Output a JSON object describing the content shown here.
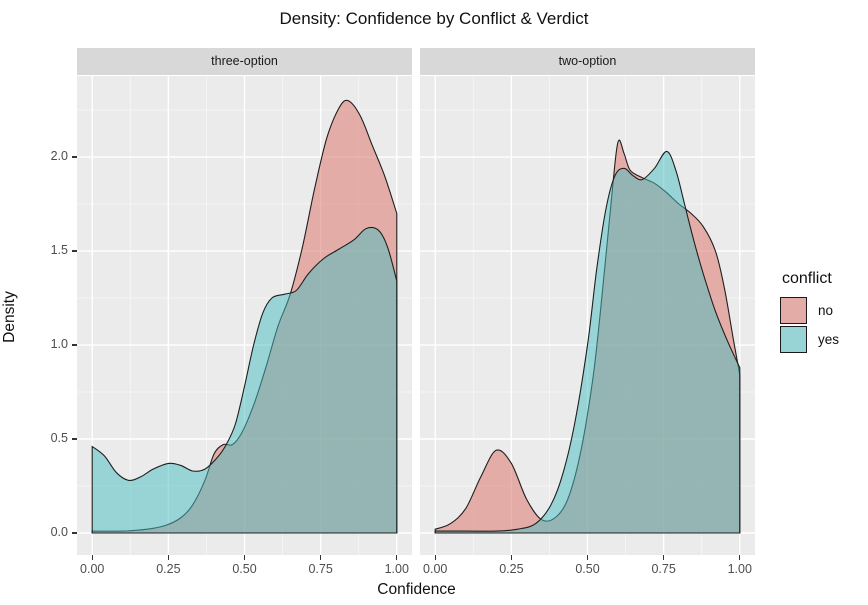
{
  "title": "Density: Confidence by Conflict & Verdict",
  "axes": {
    "x_label": "Confidence",
    "y_label": "Density"
  },
  "legend": {
    "title": "conflict",
    "items": [
      {
        "label": "no"
      },
      {
        "label": "yes"
      }
    ]
  },
  "colors": {
    "fill": {
      "no": "rgba(221,120,110,0.55)",
      "yes": "rgba(70,190,192,0.50)"
    },
    "outline": "#1f1f1f",
    "panel_bg": "#ebebeb",
    "strip_bg": "#d8d8d8",
    "grid_major": "#ffffff",
    "grid_minor": "rgba(255,255,255,0.6)",
    "axis_text": "#4d4d4d",
    "tick_mark": "#333333",
    "legend_key_bg": "#ebebeb"
  },
  "chart_data": {
    "type": "area",
    "subtype": "overlaid kernel density, faceted",
    "title": "Density: Confidence by Conflict & Verdict",
    "xlabel": "Confidence",
    "ylabel": "Density",
    "legend_title": "conflict",
    "legend_position": "right",
    "grid": true,
    "x_tick_values": [
      0,
      0.25,
      0.5,
      0.75,
      1.0
    ],
    "x_tick_labels": [
      "0.00",
      "0.25",
      "0.50",
      "0.75",
      "1.00"
    ],
    "y_tick_values": [
      0,
      0.5,
      1.0,
      1.5,
      2.0
    ],
    "y_tick_labels": [
      "0.0",
      "0.5",
      "1.0",
      "1.5",
      "2.0"
    ],
    "x_minor_ticks": [
      0.125,
      0.375,
      0.625,
      0.875
    ],
    "y_minor_ticks": [
      0.25,
      0.75,
      1.25,
      1.75,
      2.25
    ],
    "xlim": [
      -0.05,
      1.05
    ],
    "ylim": [
      -0.117,
      2.431
    ],
    "facets": [
      {
        "label": "three-option",
        "series": [
          {
            "name": "no",
            "points": [
              [
                0.0,
                0.01
              ],
              [
                0.1,
                0.01
              ],
              [
                0.18,
                0.02
              ],
              [
                0.24,
                0.04
              ],
              [
                0.29,
                0.08
              ],
              [
                0.33,
                0.15
              ],
              [
                0.37,
                0.28
              ],
              [
                0.4,
                0.42
              ],
              [
                0.43,
                0.47
              ],
              [
                0.46,
                0.47
              ],
              [
                0.49,
                0.53
              ],
              [
                0.53,
                0.68
              ],
              [
                0.57,
                0.88
              ],
              [
                0.61,
                1.1
              ],
              [
                0.65,
                1.27
              ],
              [
                0.69,
                1.52
              ],
              [
                0.73,
                1.83
              ],
              [
                0.77,
                2.1
              ],
              [
                0.81,
                2.26
              ],
              [
                0.84,
                2.3
              ],
              [
                0.88,
                2.22
              ],
              [
                0.92,
                2.06
              ],
              [
                0.96,
                1.9
              ],
              [
                1.0,
                1.7
              ]
            ]
          },
          {
            "name": "yes",
            "points": [
              [
                0.0,
                0.46
              ],
              [
                0.04,
                0.41
              ],
              [
                0.08,
                0.32
              ],
              [
                0.12,
                0.28
              ],
              [
                0.16,
                0.3
              ],
              [
                0.2,
                0.34
              ],
              [
                0.25,
                0.37
              ],
              [
                0.29,
                0.36
              ],
              [
                0.33,
                0.33
              ],
              [
                0.37,
                0.34
              ],
              [
                0.41,
                0.4
              ],
              [
                0.44,
                0.47
              ],
              [
                0.47,
                0.58
              ],
              [
                0.5,
                0.78
              ],
              [
                0.53,
                1.0
              ],
              [
                0.56,
                1.17
              ],
              [
                0.59,
                1.25
              ],
              [
                0.63,
                1.27
              ],
              [
                0.67,
                1.29
              ],
              [
                0.71,
                1.38
              ],
              [
                0.76,
                1.46
              ],
              [
                0.81,
                1.51
              ],
              [
                0.86,
                1.56
              ],
              [
                0.9,
                1.62
              ],
              [
                0.94,
                1.61
              ],
              [
                0.97,
                1.52
              ],
              [
                1.0,
                1.34
              ]
            ]
          }
        ]
      },
      {
        "label": "two-option",
        "series": [
          {
            "name": "no",
            "points": [
              [
                0.0,
                0.02
              ],
              [
                0.05,
                0.05
              ],
              [
                0.1,
                0.13
              ],
              [
                0.15,
                0.3
              ],
              [
                0.2,
                0.44
              ],
              [
                0.25,
                0.37
              ],
              [
                0.3,
                0.18
              ],
              [
                0.35,
                0.07
              ],
              [
                0.4,
                0.09
              ],
              [
                0.44,
                0.2
              ],
              [
                0.48,
                0.45
              ],
              [
                0.52,
                0.85
              ],
              [
                0.55,
                1.3
              ],
              [
                0.58,
                1.8
              ],
              [
                0.6,
                2.08
              ],
              [
                0.62,
                2.02
              ],
              [
                0.64,
                1.93
              ],
              [
                0.68,
                1.89
              ],
              [
                0.72,
                1.86
              ],
              [
                0.76,
                1.81
              ],
              [
                0.8,
                1.75
              ],
              [
                0.84,
                1.7
              ],
              [
                0.88,
                1.63
              ],
              [
                0.92,
                1.5
              ],
              [
                0.95,
                1.3
              ],
              [
                0.98,
                1.02
              ],
              [
                1.0,
                0.84
              ]
            ]
          },
          {
            "name": "yes",
            "points": [
              [
                0.0,
                0.01
              ],
              [
                0.1,
                0.01
              ],
              [
                0.2,
                0.01
              ],
              [
                0.27,
                0.02
              ],
              [
                0.33,
                0.05
              ],
              [
                0.38,
                0.15
              ],
              [
                0.42,
                0.32
              ],
              [
                0.46,
                0.6
              ],
              [
                0.5,
                1.0
              ],
              [
                0.53,
                1.4
              ],
              [
                0.56,
                1.72
              ],
              [
                0.59,
                1.9
              ],
              [
                0.62,
                1.94
              ],
              [
                0.65,
                1.9
              ],
              [
                0.68,
                1.88
              ],
              [
                0.72,
                1.94
              ],
              [
                0.76,
                2.03
              ],
              [
                0.79,
                1.93
              ],
              [
                0.82,
                1.74
              ],
              [
                0.85,
                1.55
              ],
              [
                0.88,
                1.38
              ],
              [
                0.92,
                1.18
              ],
              [
                0.96,
                1.02
              ],
              [
                1.0,
                0.88
              ]
            ]
          }
        ]
      }
    ]
  }
}
